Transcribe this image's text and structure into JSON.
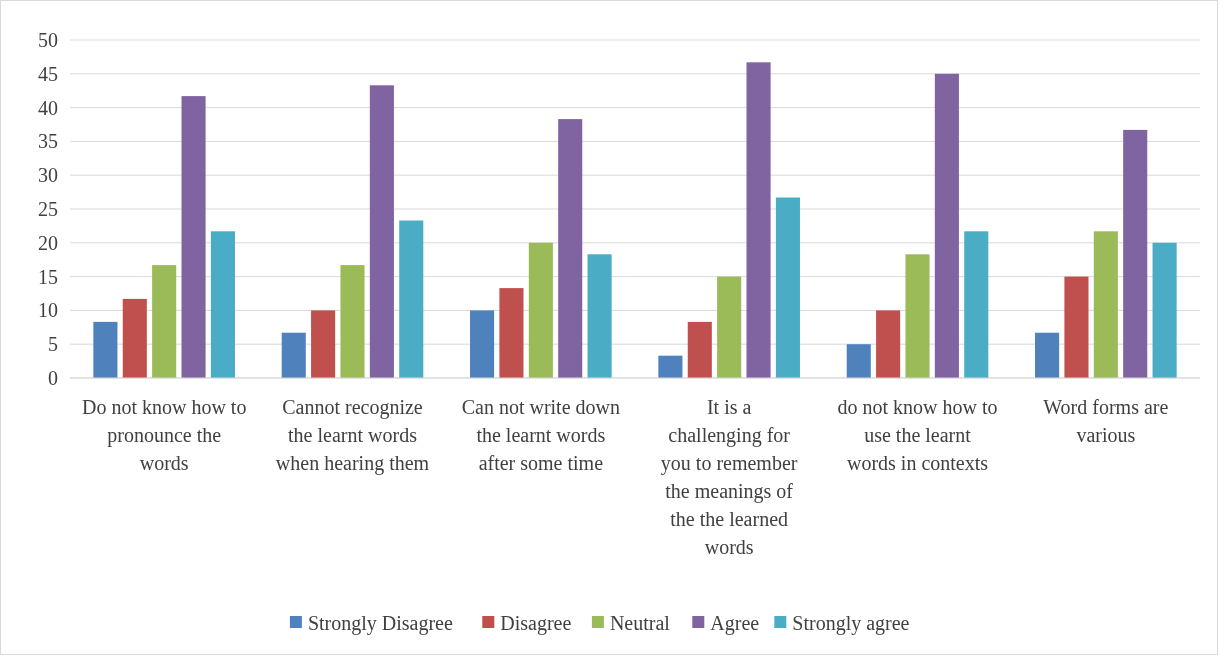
{
  "chart_data": {
    "type": "bar",
    "categories": [
      "Do not know how to pronounce the words",
      "Cannot recognize the learnt words when hearing them",
      "Can not write down the learnt words after some time",
      "It is a challenging for you to remember the meanings of the the learned words",
      "do not know how to use the learnt words in contexts",
      "Word forms are various"
    ],
    "series": [
      {
        "name": "Strongly Disagree",
        "color": "#4f81bd",
        "values": [
          8.3,
          6.7,
          10,
          3.3,
          5,
          6.7
        ]
      },
      {
        "name": "Disagree",
        "color": "#c0504d",
        "values": [
          11.7,
          10,
          13.3,
          8.3,
          10,
          15
        ]
      },
      {
        "name": "Neutral",
        "color": "#9bbb59",
        "values": [
          16.7,
          16.7,
          20,
          15,
          18.3,
          21.7
        ]
      },
      {
        "name": "Agree",
        "color": "#8064a2",
        "values": [
          41.7,
          43.3,
          38.3,
          46.7,
          45,
          36.7
        ]
      },
      {
        "name": "Strongly agree",
        "color": "#4bacc6",
        "values": [
          21.7,
          23.3,
          18.3,
          26.7,
          21.7,
          20
        ]
      }
    ],
    "ylim": [
      0,
      50
    ],
    "yticks": [
      0,
      5,
      10,
      15,
      20,
      25,
      30,
      35,
      40,
      45,
      50
    ],
    "grid": "y",
    "legend": "bottom"
  }
}
